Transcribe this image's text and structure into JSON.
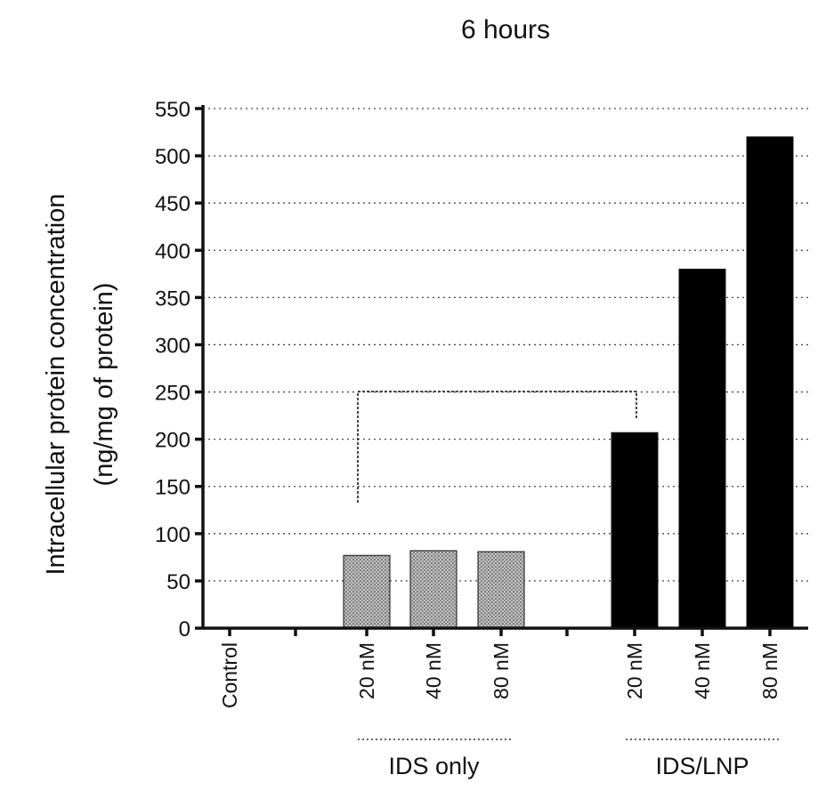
{
  "chart_data": {
    "type": "bar",
    "title": "6 hours",
    "ylabel_line1": "Intracellular protein concentration",
    "ylabel_line2": "(ng/mg of protein)",
    "ylim": [
      0,
      550
    ],
    "yticks": [
      0,
      50,
      100,
      150,
      200,
      250,
      300,
      350,
      400,
      450,
      500,
      550
    ],
    "categories": [
      "Control",
      "",
      "20 nM",
      "40 nM",
      "80 nM",
      "",
      "20 nM",
      "40 nM",
      "80 nM"
    ],
    "values": [
      0,
      null,
      77,
      82,
      81,
      null,
      207,
      380,
      520
    ],
    "groups": [
      {
        "label": "IDS only",
        "categories": [
          2,
          3,
          4
        ],
        "fill": "pattern-gray"
      },
      {
        "label": "IDS/LNP",
        "categories": [
          6,
          7,
          8
        ],
        "fill": "#000000"
      }
    ],
    "significance_bracket": {
      "from_category": 2,
      "to_category": 6
    },
    "grid": true,
    "legend": "none"
  },
  "colors": {
    "ids_only_fill": "#a8a8a8",
    "ids_lnp_fill": "#000000",
    "axis": "#111111",
    "grid": "#444444"
  }
}
